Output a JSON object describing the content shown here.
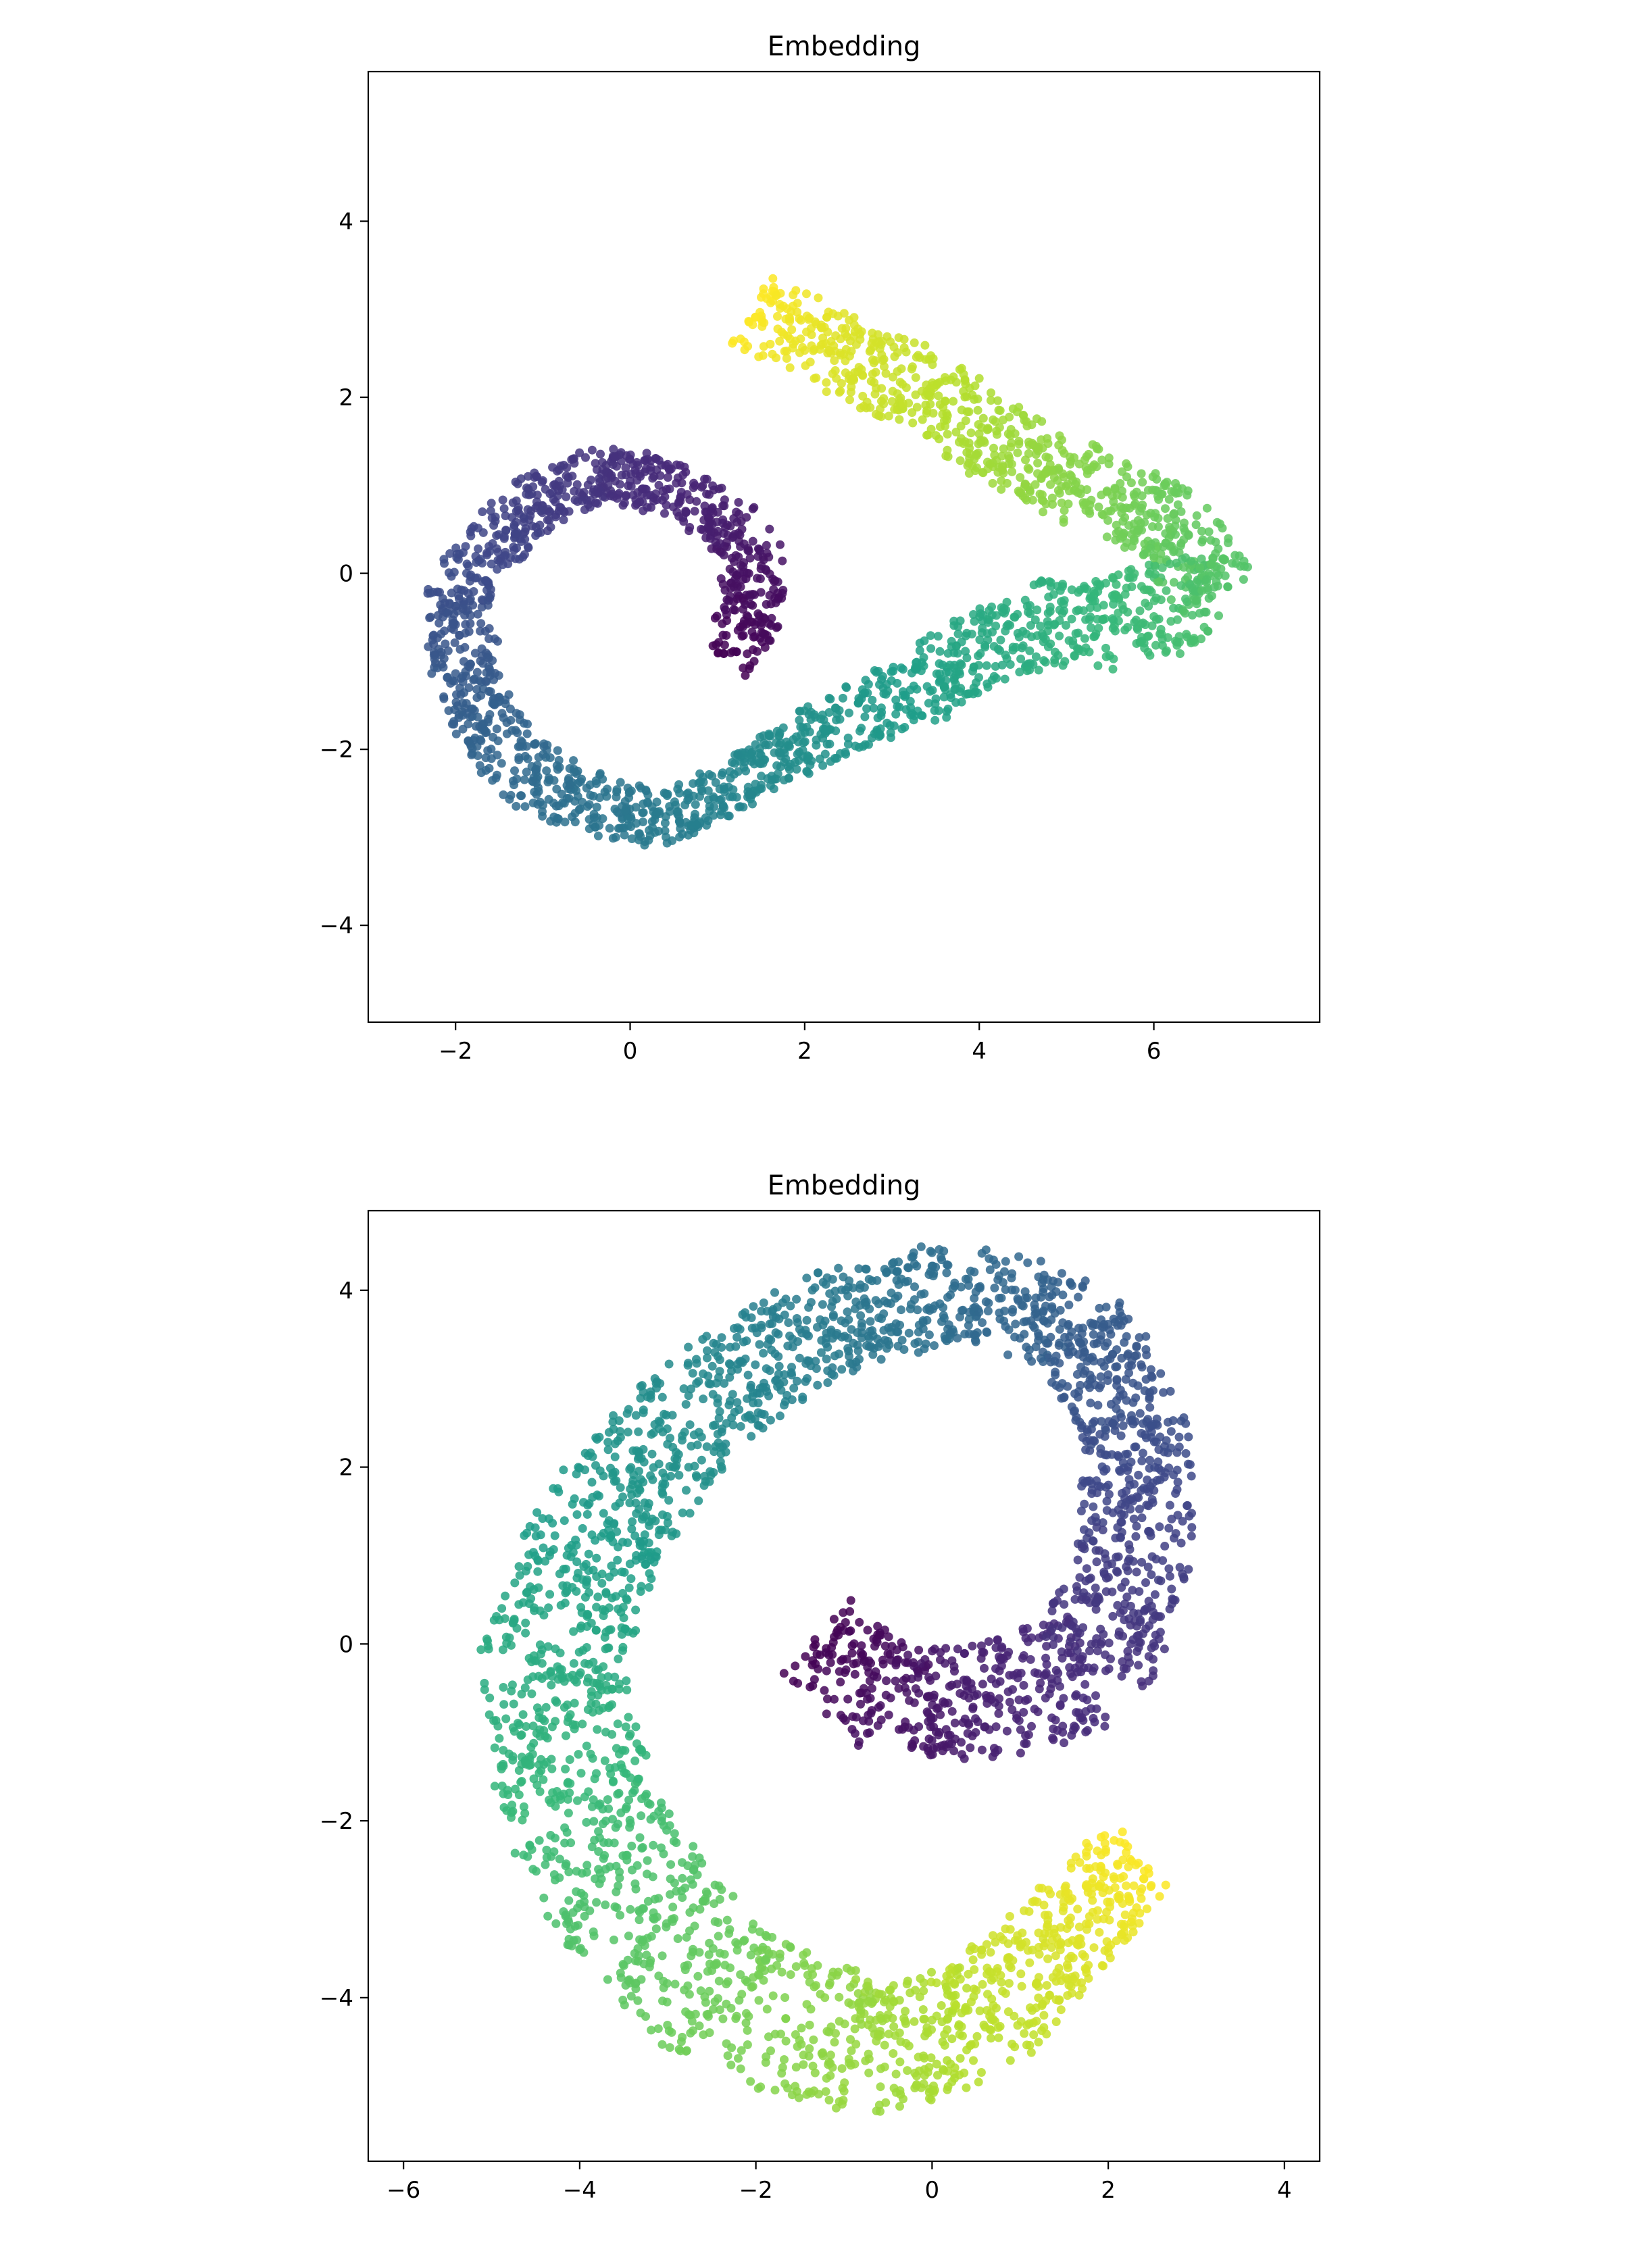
{
  "charts": [
    {
      "title": "Embedding",
      "type": "scatter",
      "xlim": [
        -3.0,
        7.9
      ],
      "ylim": [
        -5.1,
        5.7
      ],
      "xticks": [
        -2,
        0,
        2,
        4,
        6
      ],
      "yticks": [
        -4,
        -2,
        0,
        2,
        4
      ],
      "colormap": "viridis",
      "spiral_points": [
        [
          1.05,
          -0.95
        ],
        [
          1.45,
          -0.4
        ],
        [
          1.3,
          0.45
        ],
        [
          0.6,
          0.95
        ],
        [
          -0.3,
          1.15
        ],
        [
          -1.2,
          0.75
        ],
        [
          -1.95,
          -0.15
        ],
        [
          -1.9,
          -1.25
        ],
        [
          -1.3,
          -2.2
        ],
        [
          -0.5,
          -2.6
        ],
        [
          0.3,
          -2.85
        ],
        [
          1.2,
          -2.4
        ],
        [
          2.3,
          -1.75
        ],
        [
          3.5,
          -1.2
        ],
        [
          4.5,
          -0.6
        ],
        [
          5.6,
          -0.55
        ],
        [
          6.7,
          -0.25
        ],
        [
          6.25,
          0.55
        ],
        [
          5.2,
          1.0
        ],
        [
          4.2,
          1.5
        ],
        [
          3.2,
          2.15
        ],
        [
          2.1,
          2.6
        ],
        [
          1.4,
          3.0
        ]
      ],
      "half_widths": [
        0.35,
        0.35,
        0.35,
        0.3,
        0.3,
        0.35,
        0.35,
        0.38,
        0.38,
        0.35,
        0.3,
        0.3,
        0.35,
        0.45,
        0.5,
        0.55,
        0.5,
        0.45,
        0.45,
        0.45,
        0.45,
        0.45,
        0.4
      ],
      "n_points": 2600,
      "seed": 7
    },
    {
      "title": "Embedding",
      "type": "scatter",
      "xlim": [
        -6.4,
        4.4
      ],
      "ylim": [
        -5.85,
        4.9
      ],
      "xticks": [
        -6,
        -4,
        -2,
        0,
        2,
        4
      ],
      "yticks": [
        -4,
        -2,
        0,
        2,
        4
      ],
      "colormap": "viridis",
      "spiral_points": [
        [
          -1.3,
          0.1
        ],
        [
          -0.4,
          -0.7
        ],
        [
          0.8,
          -0.6
        ],
        [
          1.8,
          -0.3
        ],
        [
          2.35,
          1.1
        ],
        [
          2.3,
          2.55
        ],
        [
          1.6,
          3.65
        ],
        [
          0.3,
          4.0
        ],
        [
          -1.3,
          3.6
        ],
        [
          -2.7,
          2.65
        ],
        [
          -3.8,
          1.3
        ],
        [
          -4.3,
          -0.3
        ],
        [
          -4.0,
          -1.9
        ],
        [
          -3.2,
          -3.2
        ],
        [
          -2.2,
          -4.1
        ],
        [
          -0.8,
          -4.55
        ],
        [
          0.5,
          -4.3
        ],
        [
          1.5,
          -3.3
        ],
        [
          2.35,
          -2.35
        ]
      ],
      "half_widths": [
        0.55,
        0.6,
        0.65,
        0.7,
        0.65,
        0.6,
        0.55,
        0.55,
        0.6,
        0.65,
        0.75,
        0.85,
        0.9,
        0.9,
        0.85,
        0.8,
        0.7,
        0.6,
        0.5
      ],
      "n_points": 3200,
      "seed": 13
    }
  ]
}
